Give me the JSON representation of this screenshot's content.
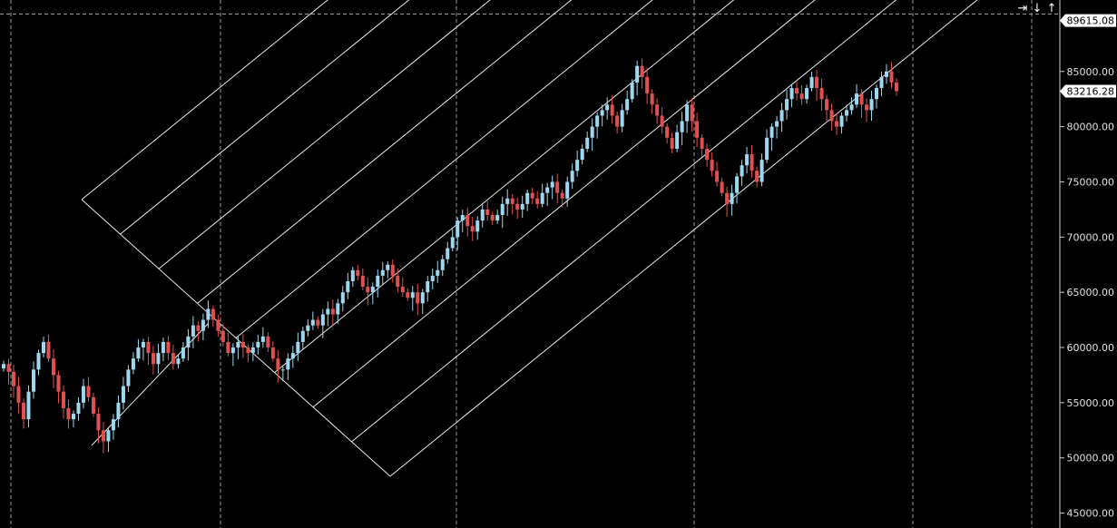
{
  "toolbar": {
    "scroll_right_icon": "arrow-right-bar-icon",
    "scroll_down_icon": "arrow-down-icon",
    "scroll_up_icon": "arrow-up-icon"
  },
  "colors": {
    "background": "#000000",
    "grid": "#9a9a9a",
    "axis_text": "#e0e0e0",
    "up_candle": "#9ed8f0",
    "down_candle": "#e05050",
    "fan_lines": "#e8e8e8",
    "price_tag_bg": "#ffffff",
    "price_tag_text": "#000000"
  },
  "chart_data": {
    "type": "candlestick",
    "title": "",
    "xlabel": "",
    "ylabel": "",
    "ylim": [
      44800,
      90200
    ],
    "y_ticks": [
      45000,
      50000,
      55000,
      60000,
      65000,
      70000,
      75000,
      80000,
      85000
    ],
    "y_tick_labels": [
      "45000.00",
      "50000.00",
      "55000.00",
      "60000.00",
      "65000.00",
      "70000.00",
      "75000.00",
      "80000.00",
      "85000.00"
    ],
    "price_tags": [
      {
        "name": "high",
        "value": 89615.08,
        "label": "89615.08"
      },
      {
        "name": "last",
        "value": 83216.28,
        "label": "83216.28"
      }
    ],
    "grid": true,
    "overlay": "parallel channel lines",
    "series": [
      {
        "name": "",
        "close_values": [
          58500,
          57800,
          56500,
          55000,
          53500,
          56000,
          58000,
          59500,
          60500,
          59000,
          57500,
          56000,
          54500,
          53500,
          54000,
          55000,
          56500,
          55500,
          54000,
          52500,
          51500,
          52500,
          53500,
          55000,
          56500,
          58000,
          59000,
          60000,
          60500,
          59500,
          58500,
          59500,
          60500,
          59500,
          58500,
          59000,
          60000,
          61000,
          62000,
          61500,
          62500,
          63500,
          62500,
          61500,
          60500,
          59500,
          60000,
          60500,
          60000,
          59500,
          60000,
          60500,
          61000,
          60000,
          59000,
          58000,
          58000,
          59000,
          59500,
          60500,
          61500,
          62000,
          62500,
          62000,
          63000,
          63500,
          63000,
          64000,
          65000,
          66000,
          67000,
          66500,
          65500,
          65000,
          65500,
          66500,
          67000,
          67500,
          66500,
          65500,
          65000,
          64500,
          65000,
          64000,
          65000,
          66000,
          66500,
          67000,
          68000,
          69000,
          70000,
          71500,
          72000,
          71000,
          70500,
          71500,
          72500,
          72000,
          71500,
          72000,
          73000,
          73500,
          73000,
          72500,
          73000,
          74000,
          73500,
          73000,
          74000,
          74500,
          75000,
          74000,
          73500,
          75000,
          76000,
          77000,
          78000,
          79000,
          80000,
          81000,
          81500,
          82000,
          81000,
          80000,
          81500,
          82500,
          84000,
          85500,
          84500,
          83000,
          82000,
          81000,
          80000,
          79000,
          78000,
          79500,
          80500,
          82000,
          80500,
          79000,
          78000,
          77000,
          76000,
          75000,
          74000,
          73000,
          74000,
          75500,
          76500,
          77500,
          76000,
          75000,
          77000,
          79000,
          80000,
          80500,
          81500,
          82500,
          83500,
          83000,
          82500,
          83500,
          84500,
          83500,
          82500,
          81500,
          80500,
          80000,
          81000,
          81500,
          82000,
          83000,
          82000,
          81500,
          82500,
          83500,
          84500,
          85000,
          84000,
          83216.28
        ]
      }
    ]
  }
}
